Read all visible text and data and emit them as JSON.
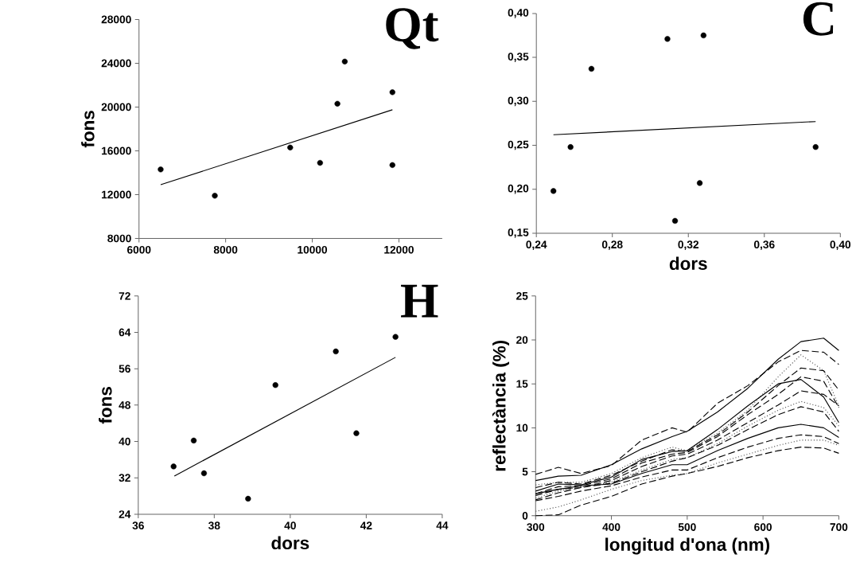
{
  "chart_data": [
    {
      "type": "scatter",
      "title": "Qt",
      "ylabel": "fons",
      "xlim": [
        6000,
        13000
      ],
      "ylim": [
        8000,
        28000
      ],
      "xticks": [
        6000,
        8000,
        10000,
        12000
      ],
      "yticks": [
        8000,
        12000,
        16000,
        20000,
        24000,
        28000
      ],
      "series": [
        {
          "type": "scatter",
          "marker": "circle",
          "color": "#000000",
          "x": [
            6500,
            7750,
            9490,
            10180,
            10580,
            10750,
            11850,
            11850
          ],
          "values": [
            14300,
            11900,
            16300,
            14900,
            20300,
            24150,
            21350,
            14700
          ]
        },
        {
          "type": "line",
          "marker": "none",
          "color": "#000000",
          "x": [
            6500,
            11850
          ],
          "values": [
            12900,
            19750
          ]
        }
      ]
    },
    {
      "type": "scatter",
      "title": "C",
      "xlabel": "dors",
      "xlim": [
        0.24,
        0.4
      ],
      "ylim": [
        0.15,
        0.4
      ],
      "xticks": [
        {
          "value": 0.24,
          "label": "0,24"
        },
        {
          "value": 0.28,
          "label": "0,28"
        },
        {
          "value": 0.32,
          "label": "0,32"
        },
        {
          "value": 0.36,
          "label": "0,36"
        },
        {
          "value": 0.4,
          "label": "0,40"
        }
      ],
      "yticks": [
        {
          "value": 0.15,
          "label": "0,15"
        },
        {
          "value": 0.2,
          "label": "0,20"
        },
        {
          "value": 0.25,
          "label": "0,25"
        },
        {
          "value": 0.3,
          "label": "0,30"
        },
        {
          "value": 0.35,
          "label": "0,35"
        },
        {
          "value": 0.4,
          "label": "0,40"
        }
      ],
      "series": [
        {
          "type": "scatter",
          "marker": "circle",
          "color": "#000000",
          "x": [
            0.249,
            0.258,
            0.269,
            0.309,
            0.313,
            0.326,
            0.328,
            0.387
          ],
          "values": [
            0.198,
            0.248,
            0.337,
            0.371,
            0.164,
            0.207,
            0.375,
            0.248
          ]
        },
        {
          "type": "line",
          "marker": "none",
          "color": "#000000",
          "x": [
            0.249,
            0.387
          ],
          "values": [
            0.262,
            0.277
          ]
        }
      ]
    },
    {
      "type": "scatter",
      "title": "H",
      "xlabel": "dors",
      "ylabel": "fons",
      "xlim": [
        36,
        44
      ],
      "ylim": [
        24,
        72
      ],
      "xticks": [
        36,
        38,
        40,
        42,
        44
      ],
      "yticks": [
        24,
        32,
        40,
        48,
        56,
        64,
        72
      ],
      "series": [
        {
          "type": "scatter",
          "marker": "circle",
          "color": "#000000",
          "x": [
            36.93,
            37.46,
            37.73,
            38.89,
            39.61,
            41.2,
            41.74,
            42.77
          ],
          "values": [
            34.5,
            40.2,
            33.0,
            27.4,
            52.4,
            59.8,
            41.8,
            63.0
          ]
        },
        {
          "type": "line",
          "marker": "none",
          "color": "#000000",
          "x": [
            36.95,
            42.77
          ],
          "values": [
            32.4,
            58.5
          ]
        }
      ]
    },
    {
      "type": "line",
      "xlabel": "longitud d'ona (nm)",
      "ylabel": "reflectància (%)",
      "xlim": [
        300,
        700
      ],
      "ylim": [
        0,
        25
      ],
      "xticks": [
        300,
        400,
        500,
        600,
        700
      ],
      "yticks": [
        0,
        5,
        10,
        15,
        20,
        25
      ],
      "x": [
        300,
        330,
        360,
        400,
        440,
        480,
        500,
        540,
        580,
        620,
        650,
        680,
        700
      ],
      "series": [
        {
          "color": "#000000",
          "line_style": "solid",
          "values": [
            4.0,
            4.5,
            4.6,
            5.8,
            7.6,
            9.0,
            9.6,
            11.8,
            14.5,
            17.8,
            19.8,
            20.2,
            18.8
          ]
        },
        {
          "color": "#000000",
          "line_style": "dashed",
          "values": [
            4.7,
            5.5,
            4.8,
            5.7,
            8.6,
            10.0,
            9.5,
            12.8,
            14.8,
            17.5,
            18.8,
            18.6,
            17.2
          ]
        },
        {
          "color": "#555555",
          "line_style": "dotted",
          "values": [
            3.5,
            3.8,
            3.8,
            4.8,
            6.6,
            7.8,
            7.4,
            9.4,
            12.0,
            15.8,
            18.3,
            16.5,
            12.5
          ]
        },
        {
          "color": "#000000",
          "line_style": "dashed",
          "values": [
            3.2,
            3.8,
            3.6,
            4.6,
            6.2,
            7.5,
            7.3,
            9.2,
            11.8,
            14.8,
            16.8,
            16.5,
            14.3
          ]
        },
        {
          "color": "#000000",
          "line_style": "solid",
          "values": [
            2.8,
            3.6,
            3.5,
            4.4,
            6.4,
            7.3,
            7.4,
            9.8,
            12.5,
            15.0,
            15.5,
            13.5,
            10.6
          ]
        },
        {
          "color": "#000000",
          "line_style": "dashed",
          "values": [
            2.5,
            3.3,
            3.4,
            4.2,
            6.0,
            7.0,
            7.2,
            9.0,
            11.5,
            13.8,
            15.8,
            15.3,
            12.3
          ]
        },
        {
          "color": "#000000",
          "line_style": "dashed",
          "values": [
            2.3,
            3.0,
            3.2,
            4.0,
            5.6,
            6.8,
            7.0,
            8.6,
            10.6,
            12.6,
            14.2,
            13.8,
            12.5
          ]
        },
        {
          "color": "#555555",
          "line_style": "dotted",
          "values": [
            2.0,
            2.8,
            3.3,
            3.8,
            5.2,
            6.4,
            6.6,
            8.2,
            10.2,
            12.0,
            13.0,
            12.3,
            10.2
          ]
        },
        {
          "color": "#000000",
          "line_style": "dashed",
          "values": [
            1.8,
            2.6,
            3.2,
            3.7,
            5.0,
            6.2,
            6.6,
            8.0,
            9.8,
            11.5,
            12.4,
            11.8,
            9.6
          ]
        },
        {
          "color": "#000000",
          "line_style": "solid",
          "values": [
            2.5,
            3.0,
            3.4,
            3.6,
            4.8,
            5.8,
            5.8,
            7.4,
            8.8,
            10.0,
            10.4,
            10.0,
            8.9
          ]
        },
        {
          "color": "#000000",
          "line_style": "dashed",
          "values": [
            1.7,
            2.2,
            2.8,
            3.4,
            4.4,
            5.2,
            5.2,
            6.6,
            7.8,
            8.8,
            9.2,
            9.0,
            8.2
          ]
        },
        {
          "color": "#555555",
          "line_style": "dotted",
          "values": [
            0.5,
            1.0,
            1.8,
            3.0,
            4.0,
            4.6,
            4.8,
            6.0,
            7.0,
            8.0,
            8.6,
            8.6,
            8.0
          ]
        },
        {
          "color": "#000000",
          "line_style": "dashed",
          "values": [
            0.0,
            0.1,
            1.2,
            2.2,
            3.6,
            4.5,
            4.8,
            5.6,
            6.6,
            7.4,
            7.8,
            7.7,
            7.1
          ]
        }
      ]
    }
  ]
}
